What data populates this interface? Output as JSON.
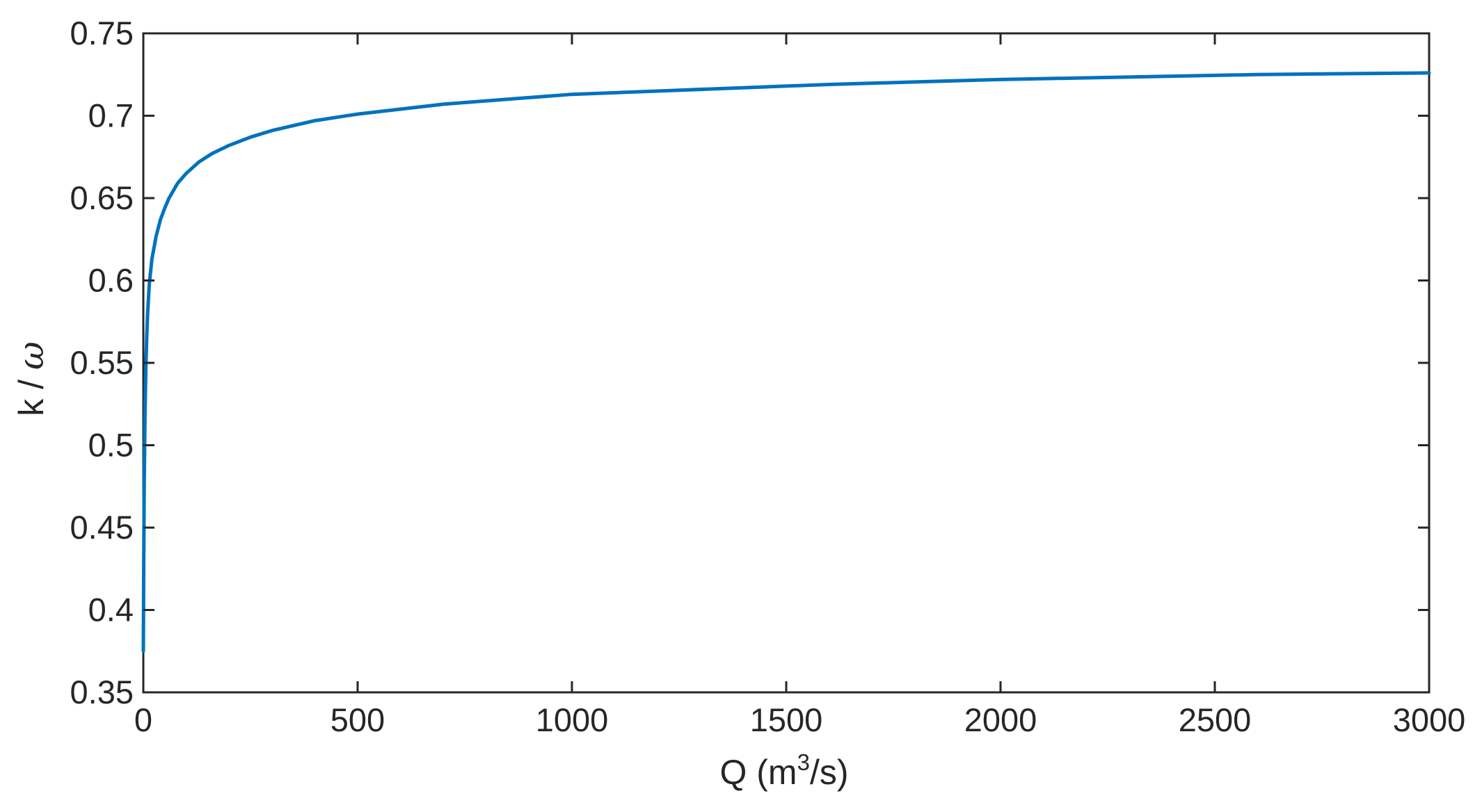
{
  "chart_data": {
    "type": "line",
    "title": "",
    "xlabel": {
      "prefix": "Q   (m",
      "superscript": "3",
      "suffix": "/s)"
    },
    "ylabel": {
      "prefix": "k / ",
      "symbol": "ω"
    },
    "xlim": [
      0,
      3000
    ],
    "ylim": [
      0.35,
      0.75
    ],
    "xticks": [
      0,
      500,
      1000,
      1500,
      2000,
      2500,
      3000
    ],
    "xtick_labels": [
      "0",
      "500",
      "1000",
      "1500",
      "2000",
      "2500",
      "3000"
    ],
    "yticks": [
      0.35,
      0.4,
      0.45,
      0.5,
      0.55,
      0.6,
      0.65,
      0.7,
      0.75
    ],
    "ytick_labels": [
      "0.35",
      "0.4",
      "0.45",
      "0.5",
      "0.55",
      "0.6",
      "0.65",
      "0.7",
      "0.75"
    ],
    "grid": false,
    "legend": false,
    "series": [
      {
        "color": "#0072BD",
        "x": [
          0,
          1,
          2,
          4,
          6,
          8,
          10,
          14,
          20,
          30,
          40,
          50,
          60,
          80,
          100,
          130,
          160,
          200,
          250,
          300,
          400,
          500,
          600,
          700,
          800,
          900,
          1000,
          1200,
          1400,
          1600,
          1800,
          2000,
          2200,
          2400,
          2600,
          2800,
          3000
        ],
        "y": [
          0.375,
          0.43,
          0.475,
          0.52,
          0.548,
          0.566,
          0.58,
          0.598,
          0.613,
          0.627,
          0.637,
          0.644,
          0.65,
          0.659,
          0.665,
          0.672,
          0.677,
          0.682,
          0.687,
          0.691,
          0.697,
          0.701,
          0.704,
          0.707,
          0.709,
          0.711,
          0.713,
          0.715,
          0.717,
          0.719,
          0.7205,
          0.722,
          0.723,
          0.724,
          0.725,
          0.7255,
          0.726
        ]
      }
    ]
  }
}
